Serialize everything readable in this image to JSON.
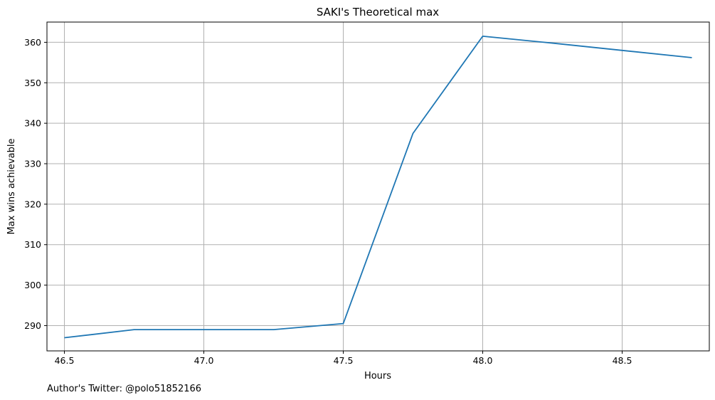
{
  "chart_data": {
    "type": "line",
    "title": "SAKI's Theoretical max",
    "xlabel": "Hours",
    "ylabel": "Max wins achievable",
    "footnote": "Author's Twitter: @polo51852166",
    "x": [
      46.5,
      46.75,
      47.0,
      47.25,
      47.5,
      47.75,
      48.0,
      48.25,
      48.5,
      48.75
    ],
    "series": [
      {
        "values": [
          287.0,
          289.0,
          289.0,
          289.0,
          290.5,
          337.5,
          361.5,
          359.8,
          358.0,
          356.2
        ],
        "color": "#1f77b4"
      }
    ],
    "xticks": [
      46.5,
      47.0,
      47.5,
      48.0,
      48.5
    ],
    "xtick_labels": [
      "46.5",
      "47.0",
      "47.5",
      "48.0",
      "48.5"
    ],
    "yticks": [
      290,
      300,
      310,
      320,
      330,
      340,
      350,
      360
    ],
    "ytick_labels": [
      "290",
      "300",
      "310",
      "320",
      "330",
      "340",
      "350",
      "360"
    ],
    "xlim": [
      46.4375,
      48.8125
    ],
    "ylim": [
      283.75,
      365.0
    ],
    "grid": true,
    "legend": false
  }
}
